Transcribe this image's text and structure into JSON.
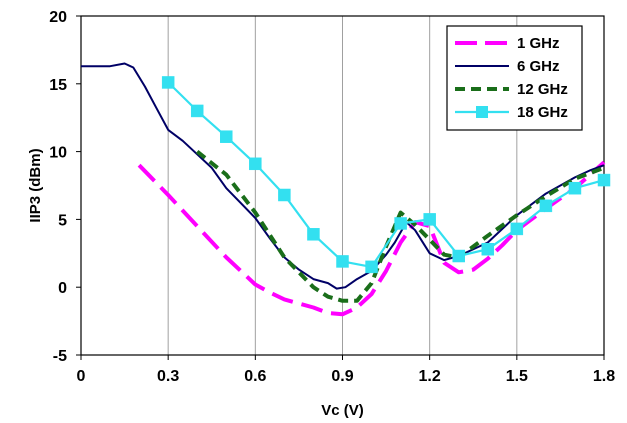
{
  "chart_data": {
    "type": "line",
    "title": "",
    "xlabel": "Vc (V)",
    "ylabel": "IIP3 (dBm)",
    "xlim": [
      0,
      1.8
    ],
    "ylim": [
      -5,
      20
    ],
    "x_ticks": [
      0,
      0.3,
      0.6,
      0.9,
      1.2,
      1.5,
      1.8
    ],
    "x_tick_labels": [
      "0",
      "0.3",
      "0.6",
      "0.9",
      "1.2",
      "1.5",
      "1.8"
    ],
    "y_ticks": [
      -5,
      0,
      5,
      10,
      15,
      20
    ],
    "y_tick_labels": [
      "-5",
      "0",
      "5",
      "10",
      "15",
      "20"
    ],
    "grid": {
      "vertical": true,
      "horizontal": false
    },
    "legend_position": "top-right",
    "series": [
      {
        "name": "1 GHz",
        "color": "#ff00ff",
        "style": "long-dash",
        "marker": "none",
        "x": [
          0.2,
          0.3,
          0.4,
          0.5,
          0.55,
          0.6,
          0.65,
          0.7,
          0.75,
          0.8,
          0.85,
          0.9,
          0.95,
          1.0,
          1.05,
          1.1,
          1.15,
          1.2,
          1.25,
          1.3,
          1.35,
          1.4,
          1.45,
          1.5,
          1.6,
          1.7,
          1.8
        ],
        "y": [
          9.0,
          6.8,
          4.5,
          2.2,
          1.2,
          0.2,
          -0.4,
          -0.9,
          -1.2,
          -1.5,
          -1.9,
          -2.0,
          -1.5,
          -0.5,
          1.2,
          3.3,
          4.8,
          4.5,
          1.8,
          1.1,
          1.3,
          2.1,
          3.1,
          4.2,
          5.8,
          7.3,
          9.2
        ]
      },
      {
        "name": "6 GHz",
        "color": "#000066",
        "style": "solid",
        "marker": "none",
        "x": [
          0.0,
          0.1,
          0.15,
          0.18,
          0.22,
          0.26,
          0.3,
          0.35,
          0.4,
          0.45,
          0.5,
          0.55,
          0.6,
          0.65,
          0.7,
          0.75,
          0.8,
          0.85,
          0.88,
          0.91,
          0.95,
          1.0,
          1.05,
          1.08,
          1.12,
          1.15,
          1.2,
          1.25,
          1.3,
          1.4,
          1.5,
          1.6,
          1.7,
          1.75,
          1.8
        ],
        "y": [
          16.3,
          16.3,
          16.5,
          16.2,
          14.8,
          13.2,
          11.6,
          10.8,
          9.8,
          8.8,
          7.3,
          6.2,
          5.1,
          3.6,
          2.2,
          1.3,
          0.6,
          0.3,
          -0.1,
          0.0,
          0.6,
          1.2,
          2.4,
          3.3,
          4.8,
          4.2,
          2.5,
          2.0,
          2.3,
          3.3,
          5.3,
          6.9,
          8.1,
          8.6,
          9.0
        ]
      },
      {
        "name": "12 GHz",
        "color": "#1a6e1a",
        "style": "short-dash",
        "marker": "none",
        "x": [
          0.4,
          0.5,
          0.6,
          0.7,
          0.8,
          0.85,
          0.9,
          0.95,
          1.0,
          1.05,
          1.1,
          1.15,
          1.2,
          1.25,
          1.3,
          1.4,
          1.5,
          1.6,
          1.7,
          1.8
        ],
        "y": [
          10.0,
          8.3,
          5.5,
          2.2,
          0.0,
          -0.7,
          -1.0,
          -1.0,
          0.3,
          3.0,
          5.5,
          4.6,
          3.5,
          2.4,
          2.2,
          3.8,
          5.3,
          6.7,
          8.0,
          8.8
        ]
      },
      {
        "name": "18 GHz",
        "color": "#33e0f0",
        "style": "solid",
        "marker": "square",
        "x": [
          0.3,
          0.4,
          0.5,
          0.6,
          0.7,
          0.8,
          0.9,
          1.0,
          1.1,
          1.2,
          1.3,
          1.4,
          1.5,
          1.6,
          1.7,
          1.8
        ],
        "y": [
          15.1,
          13.0,
          11.1,
          9.1,
          6.8,
          3.9,
          1.9,
          1.5,
          4.7,
          5.0,
          2.3,
          2.8,
          4.3,
          6.0,
          7.3,
          7.9
        ]
      }
    ]
  }
}
